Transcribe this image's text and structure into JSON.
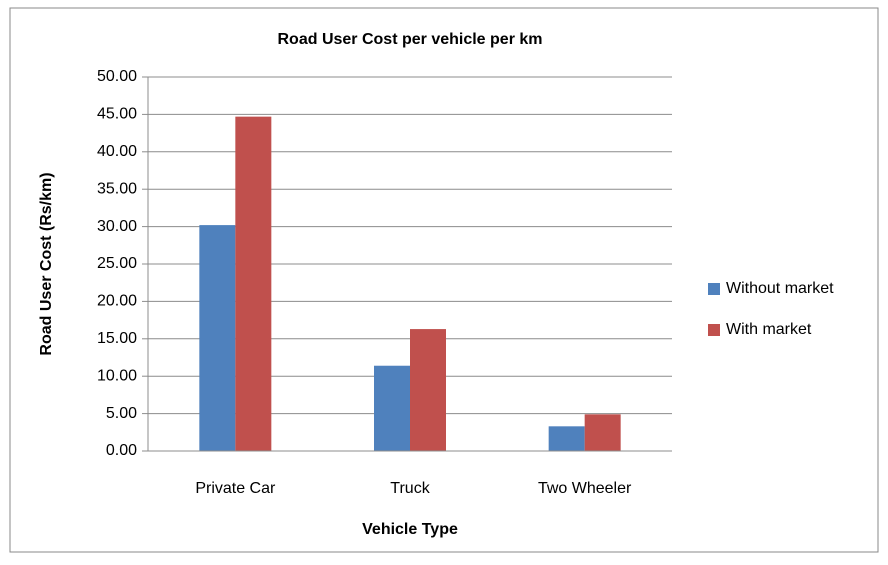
{
  "chart_data": {
    "type": "bar",
    "title": "Road User Cost per vehicle per km",
    "x_label": "Vehicle Type",
    "y_label": "Road User Cost (Rs/km)",
    "categories": [
      "Private Car",
      "Truck",
      "Two Wheeler"
    ],
    "series": [
      {
        "name": "Without market",
        "color": "#4f81bd",
        "values": [
          30.2,
          11.4,
          3.3
        ]
      },
      {
        "name": "With market",
        "color": "#c0504d",
        "values": [
          44.7,
          16.3,
          4.9
        ]
      }
    ],
    "ylim": [
      0,
      50
    ],
    "yticks": [
      {
        "value": 0,
        "label": "0.00"
      },
      {
        "value": 5,
        "label": "5.00"
      },
      {
        "value": 10,
        "label": "10.00"
      },
      {
        "value": 15,
        "label": "15.00"
      },
      {
        "value": 20,
        "label": "20.00"
      },
      {
        "value": 25,
        "label": "25.00"
      },
      {
        "value": 30,
        "label": "30.00"
      },
      {
        "value": 35,
        "label": "35.00"
      },
      {
        "value": 40,
        "label": "40.00"
      },
      {
        "value": 45,
        "label": "45.00"
      },
      {
        "value": 50,
        "label": "50.00"
      }
    ],
    "grid": true,
    "legend": "right"
  }
}
